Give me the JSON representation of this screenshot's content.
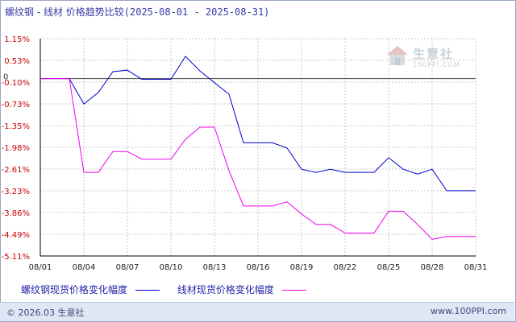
{
  "title": {
    "main": "螺纹钢 - 线材 价格趋势比较",
    "range": "(2025-08-01 - 2025-08-31)"
  },
  "watermark": {
    "text": "生意社",
    "sub": "100PPI.COM"
  },
  "footer": {
    "copyright": "© 2026.03 生意社",
    "site": "www.100PPI.com"
  },
  "legend": [
    {
      "label": "螺纹钢现货价格变化幅度"
    },
    {
      "label": "线材现货价格变化幅度"
    }
  ],
  "chart_data": {
    "type": "line",
    "x": [
      "08/01",
      "08/02",
      "08/03",
      "08/04",
      "08/05",
      "08/06",
      "08/07",
      "08/08",
      "08/09",
      "08/10",
      "08/11",
      "08/12",
      "08/13",
      "08/14",
      "08/15",
      "08/16",
      "08/17",
      "08/18",
      "08/19",
      "08/20",
      "08/21",
      "08/22",
      "08/23",
      "08/24",
      "08/25",
      "08/26",
      "08/27",
      "08/28",
      "08/29",
      "08/30",
      "08/31"
    ],
    "x_tick_labels": [
      "08/01",
      "08/04",
      "08/07",
      "08/10",
      "08/13",
      "08/16",
      "08/19",
      "08/22",
      "08/25",
      "08/28",
      "08/31"
    ],
    "y_tick_labels": [
      "1.15%",
      "0.53%",
      "-0.10%",
      "-0.73%",
      "-1.35%",
      "-1.98%",
      "-2.61%",
      "-3.23%",
      "-3.86%",
      "-4.49%",
      "-5.11%"
    ],
    "y_zero_label": "0",
    "ylim": [
      -5.11,
      1.15
    ],
    "grid": true,
    "legend_position": "bottom",
    "series": [
      {
        "name": "螺纹钢现货价格变化幅度",
        "color": "#0000cc",
        "values": [
          0,
          0,
          0,
          -0.73,
          -0.4,
          0.2,
          0.24,
          -0.02,
          -0.02,
          -0.02,
          0.64,
          0.22,
          -0.12,
          -0.45,
          -1.85,
          -1.85,
          -1.85,
          -2.0,
          -2.61,
          -2.7,
          -2.61,
          -2.7,
          -2.7,
          -2.7,
          -2.28,
          -2.61,
          -2.75,
          -2.61,
          -3.23,
          -3.23,
          -3.23
        ]
      },
      {
        "name": "线材现货价格变化幅度",
        "color": "#ee00ee",
        "values": [
          0,
          0,
          0,
          -2.7,
          -2.7,
          -2.1,
          -2.1,
          -2.32,
          -2.32,
          -2.32,
          -1.75,
          -1.4,
          -1.4,
          -2.65,
          -3.67,
          -3.67,
          -3.67,
          -3.55,
          -3.9,
          -4.2,
          -4.2,
          -4.45,
          -4.45,
          -4.45,
          -3.82,
          -3.82,
          -4.2,
          -4.63,
          -4.55,
          -4.55,
          -4.55
        ]
      }
    ]
  }
}
